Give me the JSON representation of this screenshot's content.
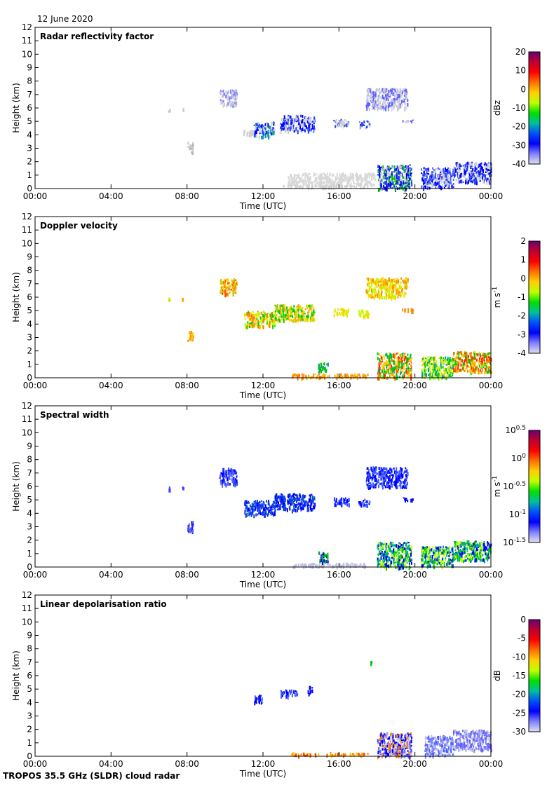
{
  "header": {
    "date": "12 June 2020"
  },
  "footer": {
    "instrument": "TROPOS 35.5 GHz (SLDR) cloud radar"
  },
  "chart_data": [
    {
      "type": "heatmap",
      "title": "Radar reflectivity factor",
      "xlabel": "Time (UTC)",
      "ylabel": "Height (km)",
      "xlim": [
        0,
        24
      ],
      "ylim": [
        0,
        12
      ],
      "xticks": [
        "00:00",
        "04:00",
        "08:00",
        "12:00",
        "16:00",
        "20:00",
        "00:00"
      ],
      "yticks": [
        "0",
        "1",
        "2",
        "3",
        "4",
        "5",
        "6",
        "7",
        "8",
        "9",
        "10",
        "11",
        "12"
      ],
      "colorbar": {
        "unit": "dBz",
        "unit_sup": "",
        "ticks": [
          {
            "b": "20",
            "s": ""
          },
          {
            "b": "10",
            "s": ""
          },
          {
            "b": "0",
            "s": ""
          },
          {
            "b": "-10",
            "s": ""
          },
          {
            "b": "-20",
            "s": ""
          },
          {
            "b": "-30",
            "s": ""
          },
          {
            "b": "-40",
            "s": ""
          }
        ],
        "colors": [
          "#6a0070",
          "#c00030",
          "#ff0000",
          "#ff7000",
          "#ffd000",
          "#c0ff00",
          "#00e000",
          "#00c0a0",
          "#0050ff",
          "#0000ff",
          "#8080ff",
          "#e0e0f0"
        ]
      },
      "echoes": [
        [
          7.0,
          7.1,
          5.8,
          6.0,
          [
            "#c8c8c8"
          ]
        ],
        [
          7.7,
          7.8,
          5.9,
          6.0,
          [
            "#c8c8c8"
          ]
        ],
        [
          8.0,
          8.3,
          2.7,
          3.5,
          [
            "#c8c8c8",
            "#b0b0c0"
          ]
        ],
        [
          9.7,
          10.6,
          6.2,
          7.4,
          [
            "#c0c0d8",
            "#8080ff",
            "#d8d8d8"
          ]
        ],
        [
          10.9,
          11.6,
          4.0,
          4.4,
          [
            "#d0d0d0"
          ]
        ],
        [
          11.5,
          12.6,
          3.9,
          5.0,
          [
            "#0000ff",
            "#2040ff",
            "#d0d0d0",
            "#00a0a0"
          ]
        ],
        [
          12.9,
          14.7,
          4.3,
          5.5,
          [
            "#0000ff",
            "#2040ff",
            "#d0d0d0"
          ]
        ],
        [
          15.7,
          16.5,
          4.7,
          5.2,
          [
            "#2040ff",
            "#d0d0d0"
          ]
        ],
        [
          17.0,
          17.6,
          4.6,
          5.1,
          [
            "#2040ff",
            "#d0d0d0"
          ]
        ],
        [
          17.4,
          19.6,
          6.0,
          7.5,
          [
            "#6060ff",
            "#c0c0e0",
            "#d8d8d8"
          ]
        ],
        [
          19.3,
          19.9,
          5.0,
          5.2,
          [
            "#6060ff",
            "#d0d0d0"
          ]
        ],
        [
          13.3,
          17.9,
          0.3,
          1.2,
          [
            "#d8d8d8"
          ]
        ],
        [
          13.0,
          17.5,
          0.15,
          0.3,
          [
            "#d0d0d0"
          ]
        ],
        [
          18.0,
          19.8,
          0.0,
          1.8,
          [
            "#0000ff",
            "#2040ff",
            "#d0d0d0",
            "#00c000"
          ]
        ],
        [
          20.3,
          22.0,
          0.1,
          1.6,
          [
            "#0000ff",
            "#4060ff",
            "#d0d0d0"
          ]
        ],
        [
          22.0,
          24.0,
          0.5,
          2.0,
          [
            "#0000ff",
            "#2040ff",
            "#d0d0d0"
          ]
        ]
      ]
    },
    {
      "type": "heatmap",
      "title": "Doppler velocity",
      "xlabel": "Time (UTC)",
      "ylabel": "Height (km)",
      "xlim": [
        0,
        24
      ],
      "ylim": [
        0,
        12
      ],
      "xticks": [
        "00:00",
        "04:00",
        "08:00",
        "12:00",
        "16:00",
        "20:00",
        "00:00"
      ],
      "yticks": [
        "0",
        "1",
        "2",
        "3",
        "4",
        "5",
        "6",
        "7",
        "8",
        "9",
        "10",
        "11",
        "12"
      ],
      "colorbar": {
        "unit": "m s",
        "unit_sup": "-1",
        "ticks": [
          {
            "b": "2",
            "s": ""
          },
          {
            "b": "1",
            "s": ""
          },
          {
            "b": "0",
            "s": ""
          },
          {
            "b": "-1",
            "s": ""
          },
          {
            "b": "-2",
            "s": ""
          },
          {
            "b": "-3",
            "s": ""
          },
          {
            "b": "-4",
            "s": ""
          }
        ],
        "colors": [
          "#6a0070",
          "#c00030",
          "#ff0000",
          "#ff7000",
          "#ffd000",
          "#c0ff00",
          "#00e000",
          "#00c0a0",
          "#0050ff",
          "#0000ff",
          "#8080ff",
          "#e0e0f0"
        ]
      },
      "echoes": [
        [
          7.0,
          7.1,
          5.7,
          6.0,
          [
            "#c0e000",
            "#ffd000"
          ]
        ],
        [
          7.7,
          7.8,
          5.9,
          6.0,
          [
            "#ffa000"
          ]
        ],
        [
          8.0,
          8.3,
          2.7,
          3.5,
          [
            "#ff9000",
            "#ffd000"
          ]
        ],
        [
          9.7,
          10.6,
          6.2,
          7.4,
          [
            "#ff9000",
            "#ffd000",
            "#c0e000",
            "#ff5000"
          ]
        ],
        [
          11.0,
          12.6,
          3.9,
          5.0,
          [
            "#00d000",
            "#c0ff00",
            "#ffd000",
            "#ff8000"
          ]
        ],
        [
          12.6,
          14.7,
          4.3,
          5.5,
          [
            "#ffd000",
            "#c0e000",
            "#ffa000",
            "#00d000"
          ]
        ],
        [
          15.7,
          16.5,
          4.7,
          5.2,
          [
            "#ffd000",
            "#c0ff00"
          ]
        ],
        [
          17.0,
          17.6,
          4.6,
          5.1,
          [
            "#c0ff00",
            "#ffd000"
          ]
        ],
        [
          17.4,
          19.6,
          6.0,
          7.5,
          [
            "#ffd000",
            "#ff9000",
            "#c0ff00"
          ]
        ],
        [
          19.3,
          19.9,
          5.0,
          5.2,
          [
            "#ff6000",
            "#ff9000"
          ]
        ],
        [
          14.9,
          15.4,
          0.4,
          1.2,
          [
            "#00c000",
            "#00a0a0",
            "#c0ff00"
          ]
        ],
        [
          13.5,
          17.5,
          0.1,
          0.35,
          [
            "#ffb000",
            "#ff8000"
          ]
        ],
        [
          18.0,
          19.8,
          0.0,
          1.9,
          [
            "#ff8000",
            "#ffd000",
            "#00d000",
            "#ff2000",
            "#00a0a0"
          ]
        ],
        [
          20.3,
          22.0,
          0.1,
          1.6,
          [
            "#00d000",
            "#c0ff00",
            "#00a0a0",
            "#ffd000"
          ]
        ],
        [
          22.0,
          24.0,
          0.5,
          2.0,
          [
            "#ff8000",
            "#ffd000",
            "#00d000",
            "#ff3000"
          ]
        ]
      ]
    },
    {
      "type": "heatmap",
      "title": "Spectral width",
      "xlabel": "Time (UTC)",
      "ylabel": "Height (km)",
      "xlim": [
        0,
        24
      ],
      "ylim": [
        0,
        12
      ],
      "xticks": [
        "00:00",
        "04:00",
        "08:00",
        "12:00",
        "16:00",
        "20:00",
        "00:00"
      ],
      "yticks": [
        "0",
        "1",
        "2",
        "3",
        "4",
        "5",
        "6",
        "7",
        "8",
        "9",
        "10",
        "11",
        "12"
      ],
      "colorbar": {
        "unit": "m s",
        "unit_sup": "-1",
        "ticks": [
          {
            "b": "10",
            "s": "0.5"
          },
          {
            "b": "10",
            "s": "0"
          },
          {
            "b": "10",
            "s": "-0.5"
          },
          {
            "b": "10",
            "s": "-1"
          },
          {
            "b": "10",
            "s": "-1.5"
          }
        ],
        "colors": [
          "#6a0070",
          "#c00030",
          "#ff0000",
          "#ff7000",
          "#ffd000",
          "#c0ff00",
          "#00e000",
          "#00c0a0",
          "#0050ff",
          "#0000ff",
          "#8080ff",
          "#e0e0f0"
        ]
      },
      "echoes": [
        [
          7.0,
          7.1,
          5.7,
          6.0,
          [
            "#4040ff"
          ]
        ],
        [
          7.7,
          7.8,
          5.9,
          6.0,
          [
            "#4040ff"
          ]
        ],
        [
          8.0,
          8.3,
          2.7,
          3.5,
          [
            "#2020ff",
            "#6060ff"
          ]
        ],
        [
          9.7,
          10.6,
          6.2,
          7.4,
          [
            "#0000ff",
            "#2040ff",
            "#6060ff"
          ]
        ],
        [
          11.0,
          12.6,
          3.9,
          5.0,
          [
            "#0000ff",
            "#2040ff",
            "#0050c0"
          ]
        ],
        [
          12.6,
          14.7,
          4.3,
          5.5,
          [
            "#0000ff",
            "#2040ff",
            "#0050c0"
          ]
        ],
        [
          15.7,
          16.5,
          4.7,
          5.2,
          [
            "#0000ff",
            "#2040ff"
          ]
        ],
        [
          17.0,
          17.6,
          4.6,
          5.1,
          [
            "#0000ff",
            "#4060ff"
          ]
        ],
        [
          17.4,
          19.6,
          6.0,
          7.5,
          [
            "#0000ff",
            "#4060ff"
          ]
        ],
        [
          19.3,
          19.9,
          5.0,
          5.2,
          [
            "#0000ff"
          ]
        ],
        [
          14.9,
          15.4,
          0.4,
          1.2,
          [
            "#0000ff",
            "#00c000"
          ]
        ],
        [
          13.5,
          17.5,
          0.1,
          0.35,
          [
            "#c0c0e0"
          ]
        ],
        [
          18.0,
          19.8,
          0.0,
          1.9,
          [
            "#00d000",
            "#c0ff00",
            "#0000ff",
            "#00a0a0"
          ]
        ],
        [
          20.3,
          22.0,
          0.1,
          1.6,
          [
            "#00d000",
            "#0000ff",
            "#00a0a0",
            "#c0ff00"
          ]
        ],
        [
          22.0,
          24.0,
          0.5,
          2.0,
          [
            "#00d000",
            "#0000ff",
            "#00a0a0",
            "#c0ff00"
          ]
        ]
      ]
    },
    {
      "type": "heatmap",
      "title": "Linear depolarisation ratio",
      "xlabel": "Time (UTC)",
      "ylabel": "Height (km)",
      "xlim": [
        0,
        24
      ],
      "ylim": [
        0,
        12
      ],
      "xticks": [
        "00:00",
        "04:00",
        "08:00",
        "12:00",
        "16:00",
        "20:00",
        "00:00"
      ],
      "yticks": [
        "0",
        "1",
        "2",
        "3",
        "4",
        "5",
        "6",
        "7",
        "8",
        "9",
        "10",
        "11",
        "12"
      ],
      "colorbar": {
        "unit": "dB",
        "unit_sup": "",
        "ticks": [
          {
            "b": "0",
            "s": ""
          },
          {
            "b": "-5",
            "s": ""
          },
          {
            "b": "-10",
            "s": ""
          },
          {
            "b": "-15",
            "s": ""
          },
          {
            "b": "-20",
            "s": ""
          },
          {
            "b": "-25",
            "s": ""
          },
          {
            "b": "-30",
            "s": ""
          }
        ],
        "colors": [
          "#6a0070",
          "#c00030",
          "#ff0000",
          "#ff7000",
          "#ffd000",
          "#c0ff00",
          "#00e000",
          "#00c0a0",
          "#0050ff",
          "#0000ff",
          "#8080ff",
          "#e0e0f0"
        ]
      },
      "echoes": [
        [
          11.5,
          12.0,
          4.0,
          4.6,
          [
            "#0000ff",
            "#4060ff"
          ]
        ],
        [
          12.9,
          13.8,
          4.5,
          5.0,
          [
            "#0000ff",
            "#4060ff"
          ]
        ],
        [
          14.3,
          14.6,
          4.7,
          5.3,
          [
            "#0000ff"
          ]
        ],
        [
          17.6,
          17.7,
          7.0,
          7.1,
          [
            "#00c000"
          ]
        ],
        [
          13.5,
          17.5,
          0.1,
          0.3,
          [
            "#ff8000",
            "#ffd000",
            "#ff4000"
          ]
        ],
        [
          18.0,
          19.8,
          0.0,
          1.8,
          [
            "#0000ff",
            "#6060ff",
            "#c0c0e0",
            "#ff8000"
          ]
        ],
        [
          20.5,
          22.0,
          0.1,
          1.6,
          [
            "#4060ff",
            "#8080ff",
            "#c0c0e0"
          ]
        ],
        [
          22.0,
          24.0,
          0.5,
          2.0,
          [
            "#6060ff",
            "#8080ff",
            "#c0c0e0"
          ]
        ]
      ]
    }
  ]
}
